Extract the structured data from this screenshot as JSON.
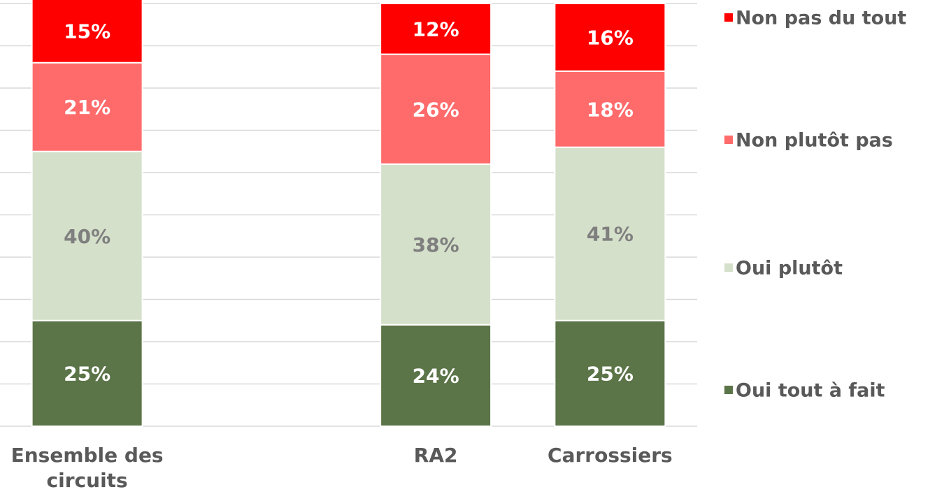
{
  "chart_data": {
    "type": "stacked_bar",
    "categories": [
      "Ensemble des circuits",
      null,
      "RA2",
      "Carrossiers"
    ],
    "series": [
      {
        "name": "Oui tout à fait",
        "color": "#5b7448",
        "label_color": "#ffffff",
        "values": [
          25,
          null,
          24,
          25
        ],
        "value_labels": [
          "25%",
          null,
          "24%",
          "25%"
        ]
      },
      {
        "name": "Oui plutôt",
        "color": "#d5e0ca",
        "label_color": "#7f7f7f",
        "values": [
          40,
          null,
          38,
          41
        ],
        "value_labels": [
          "40%",
          null,
          "38%",
          "41%"
        ]
      },
      {
        "name": "Non plutôt pas",
        "color": "#ff6b6b",
        "label_color": "#ffffff",
        "values": [
          21,
          null,
          26,
          18
        ],
        "value_labels": [
          "21%",
          null,
          "26%",
          "18%"
        ]
      },
      {
        "name": "Non pas du tout",
        "color": "#ff0000",
        "label_color": "#ffffff",
        "values": [
          15,
          null,
          12,
          16
        ],
        "value_labels": [
          "15%",
          null,
          "12%",
          "16%"
        ]
      }
    ],
    "ylim": [
      0,
      100
    ],
    "yticks": [
      0,
      10,
      20,
      30,
      40,
      50,
      60,
      70,
      80,
      90,
      100
    ],
    "grid": true,
    "legend": "right"
  }
}
